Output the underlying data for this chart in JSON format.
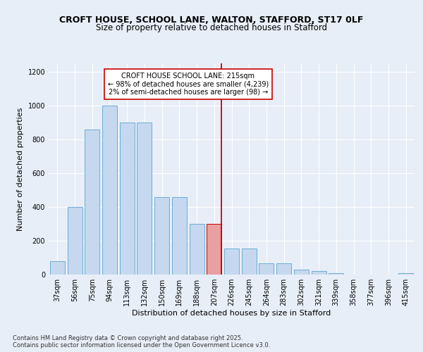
{
  "title": "CROFT HOUSE, SCHOOL LANE, WALTON, STAFFORD, ST17 0LF",
  "subtitle": "Size of property relative to detached houses in Stafford",
  "xlabel": "Distribution of detached houses by size in Stafford",
  "ylabel": "Number of detached properties",
  "categories": [
    "37sqm",
    "56sqm",
    "75sqm",
    "94sqm",
    "113sqm",
    "132sqm",
    "150sqm",
    "169sqm",
    "188sqm",
    "207sqm",
    "226sqm",
    "245sqm",
    "264sqm",
    "283sqm",
    "302sqm",
    "321sqm",
    "339sqm",
    "358sqm",
    "377sqm",
    "396sqm",
    "415sqm"
  ],
  "values": [
    80,
    400,
    860,
    1000,
    900,
    900,
    460,
    460,
    300,
    300,
    155,
    155,
    65,
    65,
    30,
    20,
    10,
    0,
    0,
    0,
    10
  ],
  "bar_color": "#c5d8ef",
  "bar_edge_color": "#6baed6",
  "highlight_bar_index": 9,
  "highlight_bar_color": "#e8a0a0",
  "highlight_bar_edge_color": "#cc0000",
  "vline_color": "#cc0000",
  "vline_pos": 9.42,
  "annotation_text": "CROFT HOUSE SCHOOL LANE: 215sqm\n← 98% of detached houses are smaller (4,239)\n2% of semi-detached houses are larger (98) →",
  "annotation_box_color": "#ffffff",
  "annotation_box_edge_color": "#cc0000",
  "ylim": [
    0,
    1250
  ],
  "yticks": [
    0,
    200,
    400,
    600,
    800,
    1000,
    1200
  ],
  "footer_text": "Contains HM Land Registry data © Crown copyright and database right 2025.\nContains public sector information licensed under the Open Government Licence v3.0.",
  "bg_color": "#e8eef8",
  "title_fontsize": 9,
  "subtitle_fontsize": 8.5,
  "axis_label_fontsize": 8,
  "tick_fontsize": 7,
  "annotation_fontsize": 7,
  "footer_fontsize": 6
}
